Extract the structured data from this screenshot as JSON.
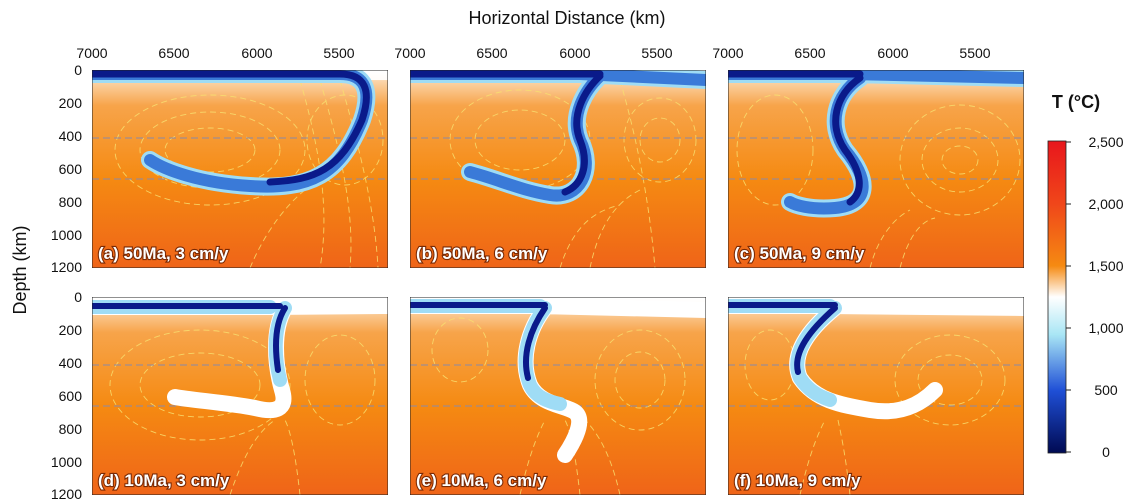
{
  "figure": {
    "x_axis_title": "Horizontal Distance (km)",
    "y_axis_title": "Depth (km)",
    "x_tick_labels": [
      "7000",
      "6500",
      "6000",
      "5500"
    ],
    "y_tick_labels": [
      "0",
      "200",
      "400",
      "600",
      "800",
      "1000",
      "1200"
    ],
    "x_range_km": [
      7000,
      5200
    ],
    "depth_range_km": [
      0,
      1200
    ],
    "dashed_reference_depths_km": [
      410,
      660
    ]
  },
  "panels": [
    {
      "id": "a",
      "label": "(a) 50Ma, 3 cm/y",
      "plate_age_Ma": 50,
      "velocity_cm_per_y": 3
    },
    {
      "id": "b",
      "label": "(b) 50Ma, 6 cm/y",
      "plate_age_Ma": 50,
      "velocity_cm_per_y": 6
    },
    {
      "id": "c",
      "label": "(c) 50Ma, 9 cm/y",
      "plate_age_Ma": 50,
      "velocity_cm_per_y": 9
    },
    {
      "id": "d",
      "label": "(d) 10Ma, 3 cm/y",
      "plate_age_Ma": 10,
      "velocity_cm_per_y": 3
    },
    {
      "id": "e",
      "label": "(e) 10Ma, 6 cm/y",
      "plate_age_Ma": 10,
      "velocity_cm_per_y": 6
    },
    {
      "id": "f",
      "label": "(f) 10Ma, 9 cm/y",
      "plate_age_Ma": 10,
      "velocity_cm_per_y": 9
    }
  ],
  "colorbar": {
    "title": "T (°C)",
    "tick_labels": [
      "2,500",
      "2,000",
      "1,500",
      "1,000",
      "500",
      "0"
    ],
    "range_C": [
      0,
      2500
    ],
    "colors": {
      "low": "#000a52",
      "blue": "#1f4fd6",
      "cyan": "#a9e6f5",
      "white": "#ffffff",
      "orange": "#f58a12",
      "red_orange": "#f0461a",
      "red": "#e8161c"
    }
  },
  "colors": {
    "mantle_top": "#ffffff",
    "mantle_mid": "#f7a44a",
    "mantle": "#f58a12",
    "mantle_deep": "#ef6a18",
    "slab_core": "#0a1a8a",
    "slab_edge": "#9fdcf5",
    "streamline": "#f8e070",
    "reference_line": "#8a8aa8"
  }
}
